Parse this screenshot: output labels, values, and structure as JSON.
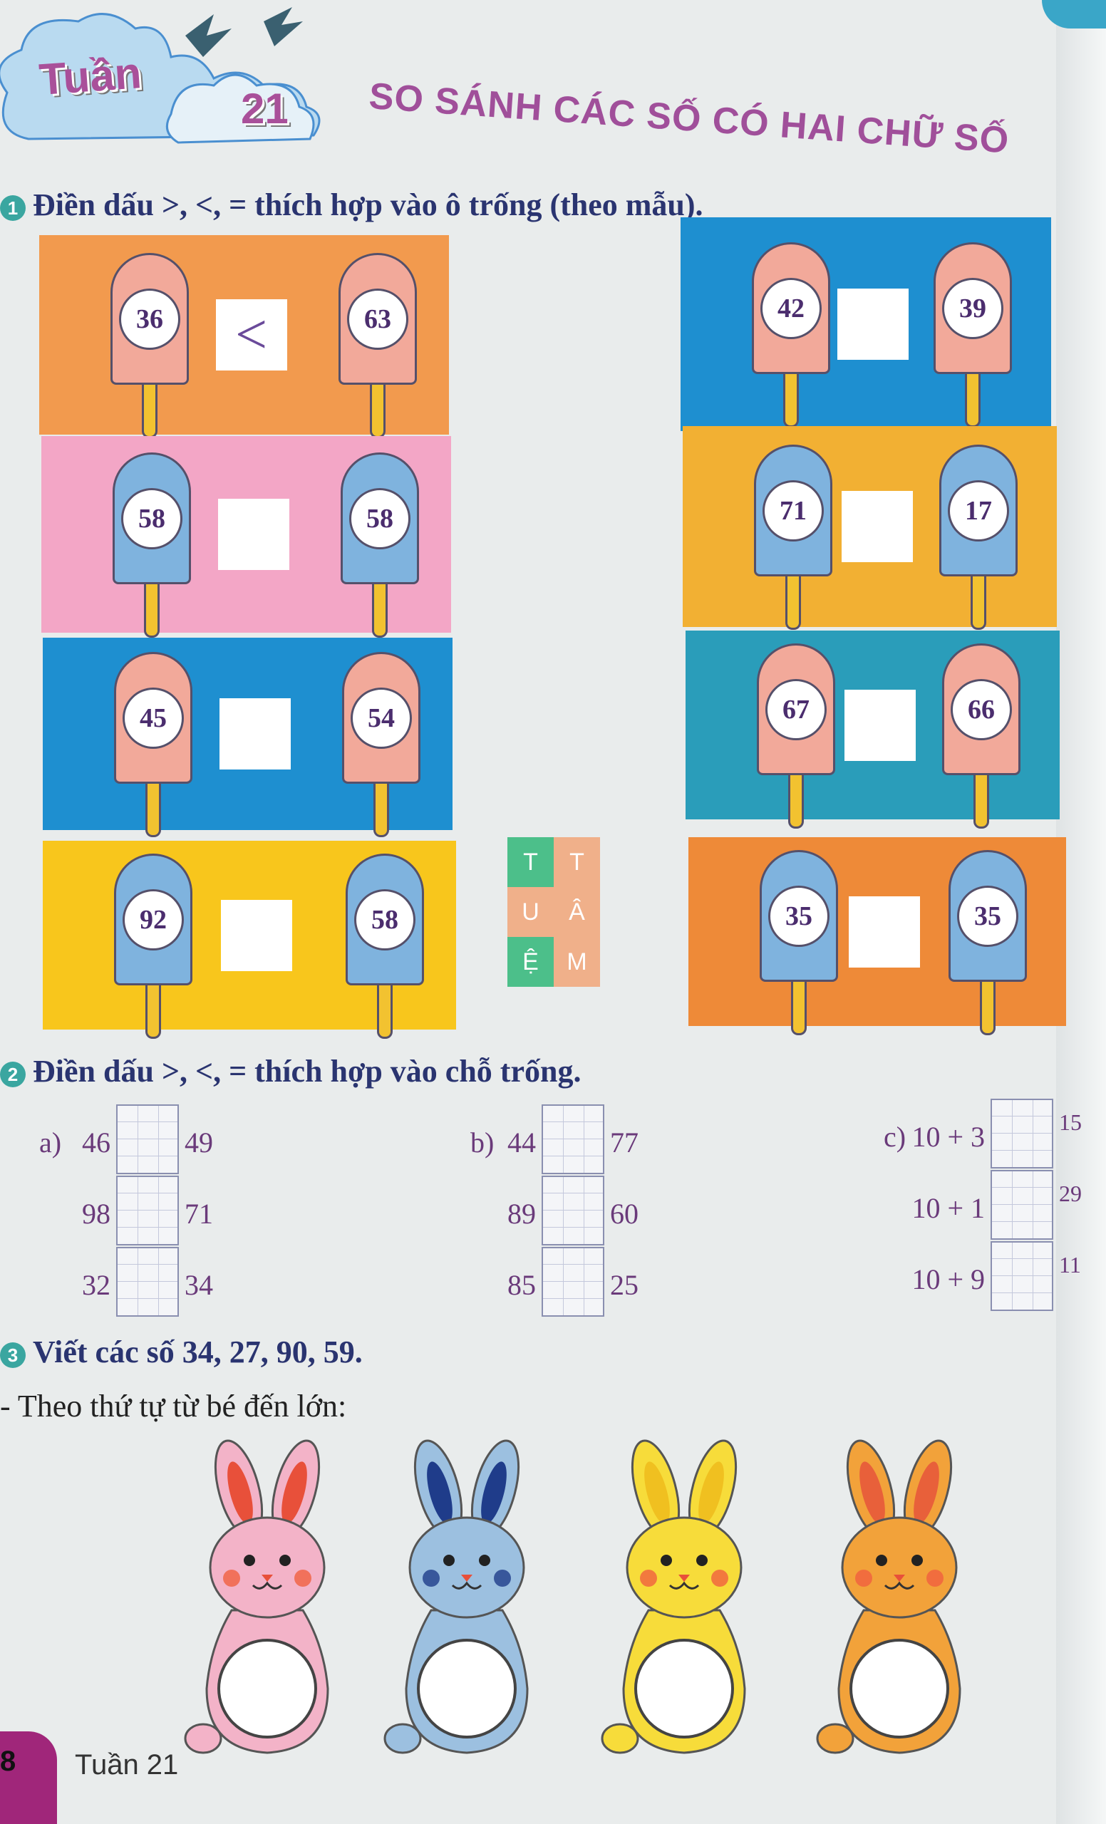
{
  "header": {
    "week_word": "Tuần",
    "week_number": "21",
    "title": "SO SÁNH CÁC SỐ CÓ HAI CHỮ SỐ"
  },
  "ex1": {
    "number": "1",
    "instruction": "Điền dấu >, <, = thích hợp vào ô trống (theo mẫu).",
    "panels": [
      {
        "left": "36",
        "sign": "<",
        "right": "63",
        "bg": "#f29a4e",
        "pop": "#f2a99a"
      },
      {
        "left": "42",
        "sign": "",
        "right": "39",
        "bg": "#1e8fd0",
        "pop": "#f2a99a"
      },
      {
        "left": "58",
        "sign": "",
        "right": "58",
        "bg": "#f3a6c6",
        "pop": "#7fb3de"
      },
      {
        "left": "71",
        "sign": "",
        "right": "17",
        "bg": "#f2b033",
        "pop": "#7fb3de"
      },
      {
        "left": "45",
        "sign": "",
        "right": "54",
        "bg": "#1e8fd0",
        "pop": "#f2a99a"
      },
      {
        "left": "67",
        "sign": "",
        "right": "66",
        "bg": "#2a9dba",
        "pop": "#f2a99a"
      },
      {
        "left": "92",
        "sign": "",
        "right": "58",
        "bg": "#f8c61c",
        "pop": "#7fb3de"
      },
      {
        "left": "35",
        "sign": "",
        "right": "35",
        "bg": "#ee8a38",
        "pop": "#7fb3de"
      }
    ]
  },
  "watermark": [
    "T",
    "T",
    "U",
    "Â",
    "Ệ",
    "M"
  ],
  "ex2": {
    "number": "2",
    "instruction": "Điền dấu >, <, = thích hợp vào chỗ trống.",
    "groups": [
      {
        "label": "a)",
        "rows": [
          [
            "46",
            "49"
          ],
          [
            "98",
            "71"
          ],
          [
            "32",
            "34"
          ]
        ]
      },
      {
        "label": "b)",
        "rows": [
          [
            "44",
            "77"
          ],
          [
            "89",
            "60"
          ],
          [
            "85",
            "25"
          ]
        ]
      },
      {
        "label": "c)",
        "rows": [
          [
            "10 + 3",
            "15"
          ],
          [
            "10 + 1",
            "29"
          ],
          [
            "10 + 9",
            "11"
          ]
        ]
      }
    ]
  },
  "ex3": {
    "number": "3",
    "instruction": "Viết các số 34, 27, 90, 59.",
    "sub": "- Theo thứ tự từ bé đến lớn:",
    "bunnies": [
      {
        "color": "#f3b3c8",
        "ear": "#e8503a"
      },
      {
        "color": "#9cc0e0",
        "ear": "#1f3c8a"
      },
      {
        "color": "#f7dc3a",
        "ear": "#f0c020"
      },
      {
        "color": "#f2a23a",
        "ear": "#e8603a"
      }
    ]
  },
  "footer": {
    "page": "8",
    "label": "Tuần 21"
  }
}
